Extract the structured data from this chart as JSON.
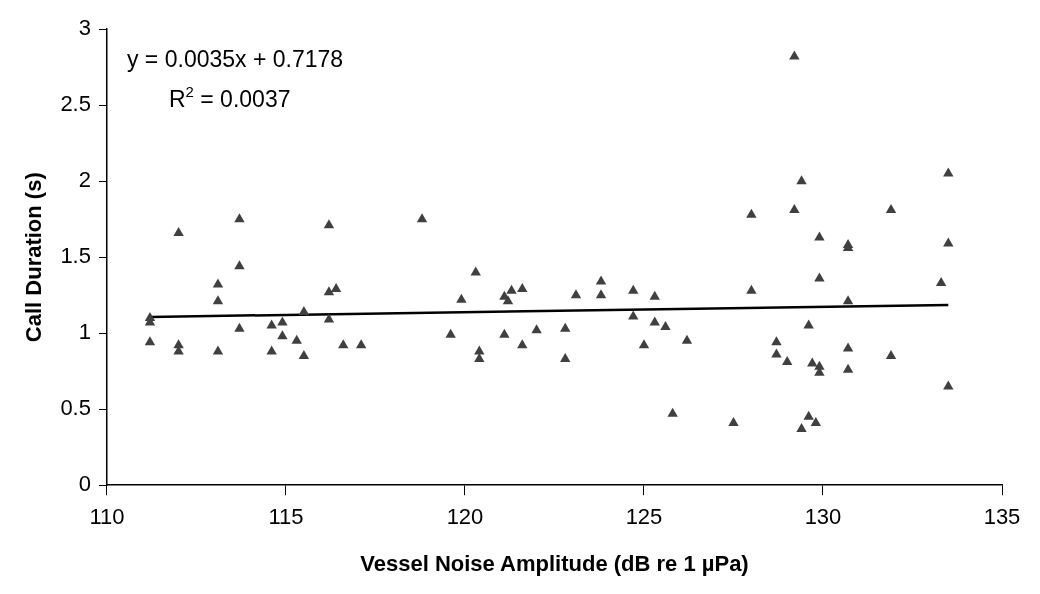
{
  "chart_data": {
    "type": "scatter",
    "xlabel": "Vessel Noise Amplitude (dB re 1 µPa)",
    "ylabel": "Call Duration (s)",
    "xlim": [
      110,
      135
    ],
    "xticks": [
      110,
      115,
      120,
      125,
      130,
      135
    ],
    "ylim": [
      0,
      3
    ],
    "yticks": [
      0,
      0.5,
      1,
      1.5,
      2,
      2.5,
      3
    ],
    "grid": false,
    "legend": false,
    "marker": "triangle",
    "annotations": [
      "y = 0.0035x + 0.7178",
      "R$^{2}$ = 0.0037"
    ],
    "series": [
      {
        "color": "#404040",
        "x": [
          111.2,
          111.2,
          111.2,
          112,
          112,
          112,
          113.1,
          113.1,
          113.1,
          113.7,
          113.7,
          113.7,
          114.6,
          114.6,
          114.9,
          114.9,
          115.3,
          115.5,
          115.5,
          116.2,
          116.2,
          116.2,
          116.4,
          116.6,
          117.1,
          118.8,
          119.6,
          119.9,
          120.3,
          120.4,
          120.4,
          121.1,
          121.1,
          121.2,
          121.3,
          121.6,
          121.6,
          122,
          122.8,
          122.8,
          123.1,
          123.8,
          123.8,
          124.7,
          124.7,
          125,
          125.3,
          125.3,
          125.6,
          125.8,
          126.2,
          127.5,
          128,
          128,
          128.7,
          128.7,
          129,
          129.2,
          129.2,
          129.4,
          129.4,
          129.6,
          129.6,
          129.7,
          129.8,
          129.9,
          129.9,
          129.9,
          129.9,
          130.7,
          130.7,
          130.7,
          130.7,
          130.7,
          131.9,
          131.9,
          133.3,
          133.5,
          133.5,
          133.5
        ],
        "values": [
          1.1,
          1.07,
          0.94,
          1.66,
          0.92,
          0.88,
          1.32,
          1.21,
          0.88,
          1.75,
          1.44,
          1.03,
          1.05,
          0.88,
          1.07,
          0.98,
          0.95,
          1.14,
          0.85,
          1.71,
          1.27,
          1.09,
          1.29,
          0.92,
          0.92,
          1.75,
          0.99,
          1.22,
          1.4,
          0.88,
          0.83,
          1.24,
          0.99,
          1.21,
          1.28,
          1.29,
          0.92,
          1.02,
          1.03,
          0.83,
          1.25,
          1.34,
          1.25,
          1.28,
          1.11,
          0.92,
          1.24,
          1.07,
          1.04,
          0.47,
          0.95,
          0.41,
          1.78,
          1.28,
          0.94,
          0.86,
          0.81,
          2.82,
          1.81,
          2,
          0.37,
          1.05,
          0.45,
          0.8,
          0.41,
          1.63,
          1.36,
          0.78,
          0.74,
          1.58,
          1.56,
          1.21,
          0.9,
          0.76,
          1.81,
          0.85,
          1.33,
          2.05,
          1.59,
          0.65
        ]
      },
      {
        "type": "line",
        "color": "#000000",
        "marker": "none",
        "line_style": "solid",
        "x": [
          111.2,
          133.5
        ],
        "values": [
          1.107,
          1.185
        ]
      }
    ]
  }
}
